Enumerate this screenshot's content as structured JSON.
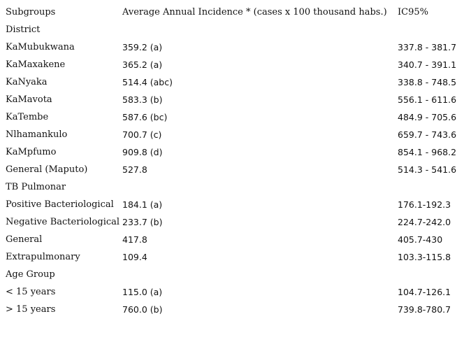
{
  "table": {
    "headers": {
      "subgroups": "Subgroups",
      "incidence": "Average Annual Incidence * (cases x 100 thousand habs.)",
      "ci": "IC95%"
    },
    "rows": [
      {
        "type": "section",
        "subgroup": "District",
        "incidence": "",
        "ci": ""
      },
      {
        "type": "data",
        "subgroup": "KaMubukwana",
        "incidence": "359.2 (a)",
        "ci": "337.8 - 381.7"
      },
      {
        "type": "data",
        "subgroup": "KaMaxakene",
        "incidence": "365.2 (a)",
        "ci": "340.7 - 391.1"
      },
      {
        "type": "data",
        "subgroup": "KaNyaka",
        "incidence": "514.4 (abc)",
        "ci": "338.8 - 748.5"
      },
      {
        "type": "data",
        "subgroup": "KaMavota",
        "incidence": "583.3 (b)",
        "ci": "556.1 - 611.6"
      },
      {
        "type": "data",
        "subgroup": "KaTembe",
        "incidence": "587.6 (bc)",
        "ci": "484.9 - 705.6"
      },
      {
        "type": "data",
        "subgroup": "Nlhamankulo",
        "incidence": "700.7 (c)",
        "ci": "659.7 - 743.6"
      },
      {
        "type": "data",
        "subgroup": "KaMpfumo",
        "incidence": "909.8 (d)",
        "ci": "854.1 - 968.2"
      },
      {
        "type": "data",
        "subgroup": "General (Maputo)",
        "incidence": "527.8",
        "ci": "514.3 - 541.6"
      },
      {
        "type": "section",
        "subgroup": "TB Pulmonar",
        "incidence": "",
        "ci": ""
      },
      {
        "type": "data",
        "subgroup": "Positive Bacteriological",
        "incidence": "184.1 (a)",
        "ci": "176.1-192.3"
      },
      {
        "type": "data",
        "subgroup": "Negative Bacteriological",
        "incidence": "233.7 (b)",
        "ci": "224.7-242.0"
      },
      {
        "type": "data",
        "subgroup": "General",
        "incidence": "417.8",
        "ci": "405.7-430"
      },
      {
        "type": "data",
        "subgroup": "Extrapulmonary",
        "incidence": "109.4",
        "ci": "103.3-115.8"
      },
      {
        "type": "section",
        "subgroup": "Age Group",
        "incidence": "",
        "ci": ""
      },
      {
        "type": "data",
        "subgroup": "< 15 years",
        "incidence": "115.0 (a)",
        "ci": "104.7-126.1"
      },
      {
        "type": "data",
        "subgroup": "> 15 years",
        "incidence": "760.0 (b)",
        "ci": "739.8-780.7"
      }
    ]
  }
}
